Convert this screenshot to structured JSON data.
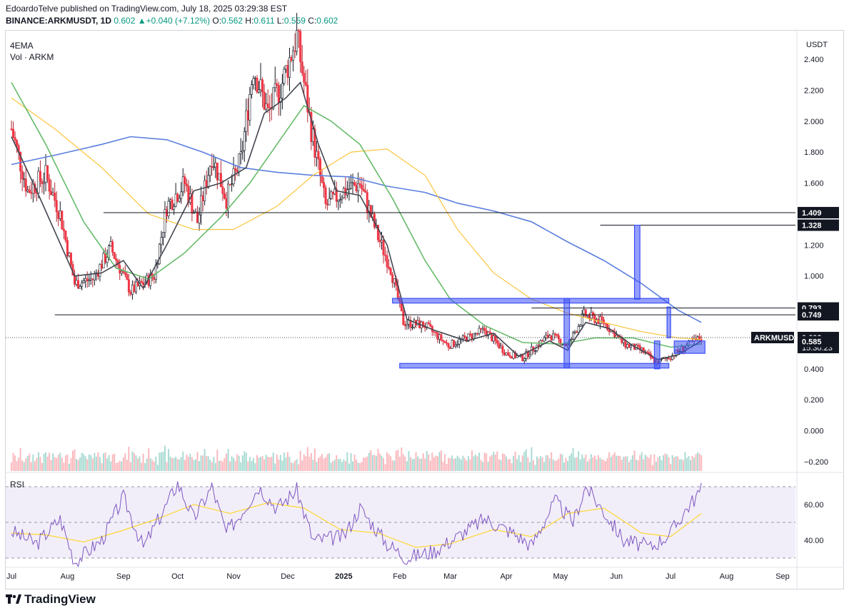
{
  "header": {
    "publisher_line": "EdoardoTelve published on TradingView.com, July 18, 2025 03:29:38 EST",
    "symbol": "BINANCE:ARKMUSDT, 1D",
    "last": "0.602",
    "change": "+0.040 (+7.12%)",
    "o_label": "O:",
    "o": "0.562",
    "h_label": "H:",
    "h": "0.611",
    "l_label": "L:",
    "l": "0.559",
    "c_label": "C:",
    "c": "0.602"
  },
  "indicators": {
    "ema_label": "4EMA",
    "vol_label": "Vol · ARKM",
    "rsi_label": "RSI"
  },
  "branding": {
    "logo_text": "TradingView"
  },
  "colors": {
    "up": "#089981",
    "down": "#f23645",
    "ema_fast": "#434651",
    "ema_green": "#66bb6a",
    "ema_yellow": "#fbc02d",
    "ema_blue": "#5b7fdf",
    "zone": "#3d50f5",
    "rsi_line": "#7e57c2",
    "rsi_ma": "#fdd835"
  },
  "chart_data": {
    "type": "candlestick",
    "currency": "USDT",
    "y_ticks": [
      2.4,
      2.2,
      2.0,
      1.8,
      1.6,
      1.4,
      1.2,
      1.0,
      0.8,
      0.6,
      0.4,
      0.2,
      0.0,
      -0.2
    ],
    "y_tick_labels": [
      "2.400",
      "2.200",
      "2.000",
      "1.800",
      "1.600",
      "1.400",
      "1.200",
      "1.000",
      "0.800",
      "0.600",
      "0.400",
      "0.200",
      "0.000",
      "−0.200"
    ],
    "x_labels": [
      "Jul",
      "Aug",
      "Sep",
      "Oct",
      "Nov",
      "Dec",
      "2025",
      "Feb",
      "Mar",
      "Apr",
      "May",
      "Jun",
      "Jul",
      "Aug",
      "Sep"
    ],
    "price_path": [
      [
        "2024-07-01",
        1.95
      ],
      [
        "2024-07-10",
        1.55
      ],
      [
        "2024-07-20",
        1.65
      ],
      [
        "2024-07-28",
        1.4
      ],
      [
        "2024-08-05",
        0.95
      ],
      [
        "2024-08-15",
        0.98
      ],
      [
        "2024-08-25",
        1.18
      ],
      [
        "2024-09-05",
        0.9
      ],
      [
        "2024-09-18",
        1.0
      ],
      [
        "2024-09-25",
        1.45
      ],
      [
        "2024-10-05",
        1.6
      ],
      [
        "2024-10-12",
        1.35
      ],
      [
        "2024-10-20",
        1.78
      ],
      [
        "2024-10-28",
        1.5
      ],
      [
        "2024-11-05",
        1.75
      ],
      [
        "2024-11-12",
        2.35
      ],
      [
        "2024-11-20",
        2.05
      ],
      [
        "2024-11-28",
        2.25
      ],
      [
        "2024-12-06",
        2.55
      ],
      [
        "2024-12-14",
        1.95
      ],
      [
        "2024-12-22",
        1.45
      ],
      [
        "2025-01-01",
        1.55
      ],
      [
        "2025-01-10",
        1.6
      ],
      [
        "2025-01-20",
        1.25
      ],
      [
        "2025-01-27",
        1.05
      ],
      [
        "2025-02-03",
        0.7
      ],
      [
        "2025-02-15",
        0.68
      ],
      [
        "2025-02-28",
        0.55
      ],
      [
        "2025-03-10",
        0.6
      ],
      [
        "2025-03-20",
        0.65
      ],
      [
        "2025-04-01",
        0.5
      ],
      [
        "2025-04-10",
        0.47
      ],
      [
        "2025-04-25",
        0.62
      ],
      [
        "2025-05-05",
        0.55
      ],
      [
        "2025-05-14",
        0.75
      ],
      [
        "2025-05-25",
        0.7
      ],
      [
        "2025-06-05",
        0.56
      ],
      [
        "2025-06-15",
        0.52
      ],
      [
        "2025-06-23",
        0.44
      ],
      [
        "2025-07-01",
        0.48
      ],
      [
        "2025-07-10",
        0.55
      ],
      [
        "2025-07-18",
        0.602
      ]
    ],
    "ema_fast": [
      [
        "2024-07-01",
        1.9
      ],
      [
        "2024-07-15",
        1.55
      ],
      [
        "2024-08-05",
        1.0
      ],
      [
        "2024-08-20",
        1.02
      ],
      [
        "2024-09-01",
        1.1
      ],
      [
        "2024-09-12",
        0.92
      ],
      [
        "2024-09-25",
        1.2
      ],
      [
        "2024-10-10",
        1.55
      ],
      [
        "2024-10-25",
        1.6
      ],
      [
        "2024-11-08",
        1.7
      ],
      [
        "2024-11-18",
        2.05
      ],
      [
        "2024-11-30",
        2.15
      ],
      [
        "2024-12-08",
        2.25
      ],
      [
        "2024-12-18",
        1.85
      ],
      [
        "2024-12-28",
        1.55
      ],
      [
        "2025-01-10",
        1.52
      ],
      [
        "2025-01-25",
        1.2
      ],
      [
        "2025-02-05",
        0.72
      ],
      [
        "2025-02-20",
        0.65
      ],
      [
        "2025-03-10",
        0.58
      ],
      [
        "2025-03-25",
        0.63
      ],
      [
        "2025-04-08",
        0.48
      ],
      [
        "2025-04-25",
        0.58
      ],
      [
        "2025-05-05",
        0.52
      ],
      [
        "2025-05-15",
        0.7
      ],
      [
        "2025-05-28",
        0.66
      ],
      [
        "2025-06-10",
        0.55
      ],
      [
        "2025-06-24",
        0.46
      ],
      [
        "2025-07-05",
        0.49
      ],
      [
        "2025-07-18",
        0.58
      ]
    ],
    "ema_green": [
      [
        "2024-07-01",
        2.25
      ],
      [
        "2024-07-20",
        1.85
      ],
      [
        "2024-08-10",
        1.35
      ],
      [
        "2024-08-28",
        1.05
      ],
      [
        "2024-09-15",
        0.98
      ],
      [
        "2024-10-05",
        1.15
      ],
      [
        "2024-10-25",
        1.38
      ],
      [
        "2024-11-10",
        1.6
      ],
      [
        "2024-11-25",
        1.85
      ],
      [
        "2024-12-10",
        2.1
      ],
      [
        "2024-12-25",
        2.0
      ],
      [
        "2025-01-10",
        1.85
      ],
      [
        "2025-01-28",
        1.5
      ],
      [
        "2025-02-15",
        1.1
      ],
      [
        "2025-03-01",
        0.85
      ],
      [
        "2025-03-20",
        0.68
      ],
      [
        "2025-04-10",
        0.57
      ],
      [
        "2025-05-01",
        0.56
      ],
      [
        "2025-05-20",
        0.6
      ],
      [
        "2025-06-10",
        0.6
      ],
      [
        "2025-07-01",
        0.54
      ],
      [
        "2025-07-18",
        0.56
      ]
    ],
    "ema_yellow": [
      [
        "2024-07-01",
        2.15
      ],
      [
        "2024-07-25",
        1.95
      ],
      [
        "2024-08-20",
        1.7
      ],
      [
        "2024-09-15",
        1.4
      ],
      [
        "2024-10-10",
        1.3
      ],
      [
        "2024-11-01",
        1.3
      ],
      [
        "2024-11-25",
        1.45
      ],
      [
        "2024-12-15",
        1.65
      ],
      [
        "2025-01-05",
        1.8
      ],
      [
        "2025-01-25",
        1.82
      ],
      [
        "2025-02-15",
        1.65
      ],
      [
        "2025-03-05",
        1.3
      ],
      [
        "2025-03-25",
        1.02
      ],
      [
        "2025-04-15",
        0.85
      ],
      [
        "2025-05-05",
        0.76
      ],
      [
        "2025-05-25",
        0.7
      ],
      [
        "2025-06-15",
        0.64
      ],
      [
        "2025-07-05",
        0.6
      ],
      [
        "2025-07-18",
        0.59
      ]
    ],
    "ema_blue": [
      [
        "2024-07-01",
        1.72
      ],
      [
        "2024-07-25",
        1.78
      ],
      [
        "2024-08-20",
        1.85
      ],
      [
        "2024-09-05",
        1.9
      ],
      [
        "2024-09-25",
        1.88
      ],
      [
        "2024-10-15",
        1.8
      ],
      [
        "2024-11-05",
        1.7
      ],
      [
        "2024-11-25",
        1.67
      ],
      [
        "2024-12-15",
        1.65
      ],
      [
        "2025-01-05",
        1.64
      ],
      [
        "2025-01-25",
        1.58
      ],
      [
        "2025-02-15",
        1.54
      ],
      [
        "2025-03-05",
        1.47
      ],
      [
        "2025-03-25",
        1.42
      ],
      [
        "2025-04-15",
        1.35
      ],
      [
        "2025-05-05",
        1.22
      ],
      [
        "2025-05-25",
        1.1
      ],
      [
        "2025-06-15",
        0.95
      ],
      [
        "2025-07-05",
        0.78
      ],
      [
        "2025-07-18",
        0.7
      ]
    ],
    "levels": [
      {
        "value": 1.409,
        "label": "1.409"
      },
      {
        "value": 1.328,
        "label": "1.328"
      },
      {
        "value": 0.793,
        "label": "0.793"
      },
      {
        "value": 0.749,
        "label": "0.749"
      },
      {
        "value": 0.602,
        "label": "0.602",
        "symbol": "ARKMUSDT",
        "countdown": "15:30:23"
      },
      {
        "value": 0.585,
        "label": "0.585"
      }
    ],
    "zones": [
      {
        "from": "2025-01-28",
        "to": "2025-06-30",
        "low": 0.825,
        "high": 0.855
      },
      {
        "from": "2025-02-01",
        "to": "2025-06-30",
        "low": 0.405,
        "high": 0.435
      },
      {
        "from": "2025-05-03",
        "to": "2025-05-06",
        "low": 0.405,
        "high": 0.855
      },
      {
        "from": "2025-06-11",
        "to": "2025-06-14",
        "low": 0.85,
        "high": 1.328
      },
      {
        "from": "2025-06-29",
        "to": "2025-07-01",
        "low": 0.6,
        "high": 0.8
      },
      {
        "from": "2025-06-22",
        "to": "2025-06-25",
        "low": 0.4,
        "high": 0.58
      },
      {
        "from": "2025-07-03",
        "to": "2025-07-20",
        "low": 0.5,
        "high": 0.58
      }
    ],
    "rsi": {
      "y_ticks": [
        60,
        40
      ],
      "y_tick_labels": [
        "60.00",
        "40.00"
      ],
      "band": [
        30,
        70
      ],
      "path": [
        [
          "2024-07-01",
          45
        ],
        [
          "2024-07-15",
          38
        ],
        [
          "2024-07-28",
          52
        ],
        [
          "2024-08-05",
          28
        ],
        [
          "2024-08-20",
          40
        ],
        [
          "2024-09-01",
          64
        ],
        [
          "2024-09-12",
          36
        ],
        [
          "2024-09-25",
          60
        ],
        [
          "2024-10-01",
          72
        ],
        [
          "2024-10-10",
          52
        ],
        [
          "2024-10-20",
          70
        ],
        [
          "2024-10-28",
          44
        ],
        [
          "2024-11-05",
          55
        ],
        [
          "2024-11-15",
          70
        ],
        [
          "2024-11-25",
          58
        ],
        [
          "2024-12-06",
          68
        ],
        [
          "2024-12-15",
          40
        ],
        [
          "2025-01-01",
          42
        ],
        [
          "2025-01-10",
          58
        ],
        [
          "2025-01-25",
          38
        ],
        [
          "2025-02-05",
          30
        ],
        [
          "2025-02-20",
          34
        ],
        [
          "2025-03-05",
          42
        ],
        [
          "2025-03-20",
          52
        ],
        [
          "2025-04-05",
          44
        ],
        [
          "2025-04-15",
          37
        ],
        [
          "2025-04-28",
          62
        ],
        [
          "2025-05-08",
          50
        ],
        [
          "2025-05-15",
          70
        ],
        [
          "2025-05-25",
          56
        ],
        [
          "2025-06-05",
          40
        ],
        [
          "2025-06-20",
          36
        ],
        [
          "2025-07-01",
          44
        ],
        [
          "2025-07-10",
          58
        ],
        [
          "2025-07-18",
          68
        ]
      ],
      "ma_path": [
        [
          "2024-07-01",
          44
        ],
        [
          "2024-07-20",
          43
        ],
        [
          "2024-08-10",
          39
        ],
        [
          "2024-08-30",
          45
        ],
        [
          "2024-09-20",
          52
        ],
        [
          "2024-10-10",
          60
        ],
        [
          "2024-10-30",
          55
        ],
        [
          "2024-11-20",
          61
        ],
        [
          "2024-12-10",
          58
        ],
        [
          "2024-12-30",
          46
        ],
        [
          "2025-01-20",
          44
        ],
        [
          "2025-02-10",
          36
        ],
        [
          "2025-03-01",
          38
        ],
        [
          "2025-03-25",
          46
        ],
        [
          "2025-04-15",
          42
        ],
        [
          "2025-05-05",
          55
        ],
        [
          "2025-05-25",
          58
        ],
        [
          "2025-06-15",
          44
        ],
        [
          "2025-07-01",
          42
        ],
        [
          "2025-07-18",
          55
        ]
      ]
    }
  }
}
